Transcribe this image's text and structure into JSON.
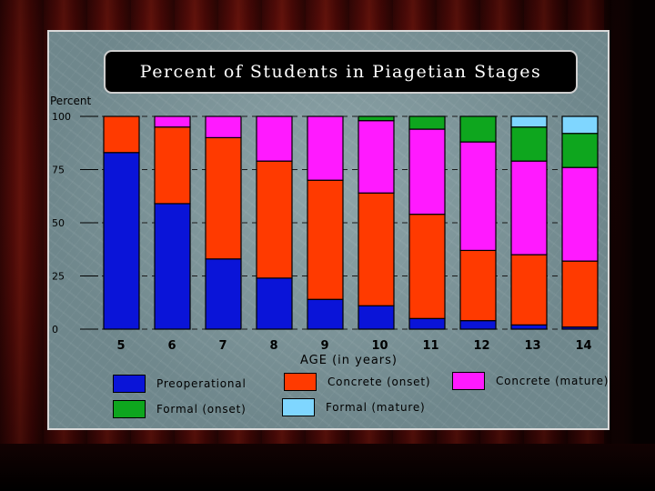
{
  "chart_data": {
    "type": "bar",
    "stacked": true,
    "title": "Percent of Students in Piagetian Stages",
    "ylabel": "Percent",
    "xlabel": "AGE (in years)",
    "ylim": [
      0,
      100
    ],
    "yticks": [
      "0",
      "25",
      "50",
      "75",
      "100"
    ],
    "grid": "dashed horizontal at ticks",
    "categories": [
      "5",
      "6",
      "7",
      "8",
      "9",
      "10",
      "11",
      "12",
      "13",
      "14"
    ],
    "series": [
      {
        "name": "Preoperational",
        "color": "#0a14d8",
        "values": [
          83,
          59,
          33,
          24,
          14,
          11,
          5,
          4,
          2,
          1
        ]
      },
      {
        "name": "Concrete (onset)",
        "color": "#ff3a00",
        "values": [
          17,
          36,
          57,
          55,
          56,
          53,
          49,
          33,
          33,
          31
        ]
      },
      {
        "name": "Concrete (mature)",
        "color": "#ff1aff",
        "values": [
          0,
          5,
          10,
          21,
          30,
          34,
          40,
          51,
          44,
          44
        ]
      },
      {
        "name": "Formal (onset)",
        "color": "#0ea61e",
        "values": [
          0,
          0,
          0,
          0,
          0,
          2,
          6,
          12,
          16,
          16
        ]
      },
      {
        "name": "Formal (mature)",
        "color": "#7fd6ff",
        "values": [
          0,
          0,
          0,
          0,
          0,
          0,
          0,
          0,
          5,
          8
        ]
      }
    ],
    "legend": "bottom"
  }
}
